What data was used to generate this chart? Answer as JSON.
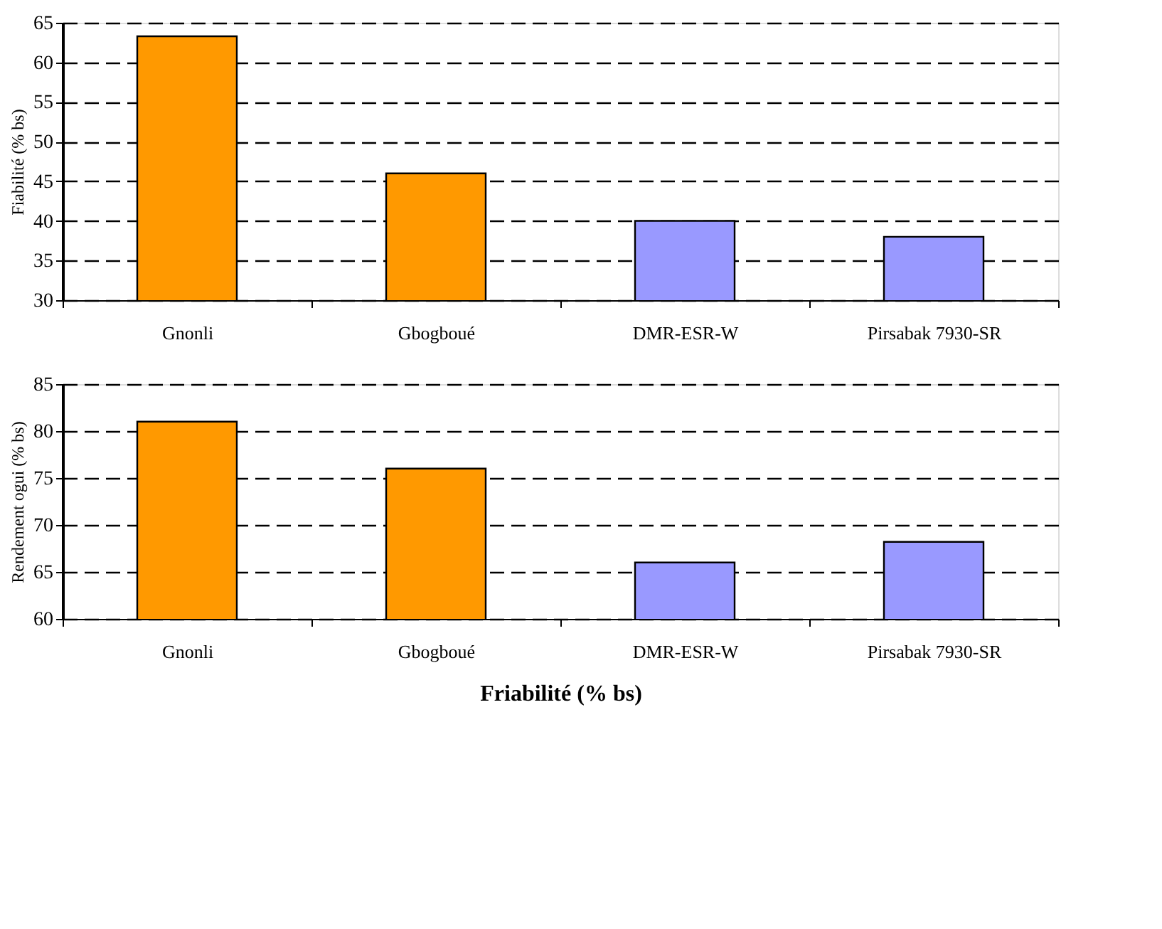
{
  "chart_data": [
    {
      "type": "bar",
      "ylabel": "Fiabilité (% bs)",
      "categories": [
        "Gnonli",
        "Gbogboué",
        "DMR-ESR-W",
        "Pirsabak 7930-SR"
      ],
      "values": [
        63.3,
        46,
        40,
        38
      ],
      "colors": [
        "#ff9900",
        "#ff9900",
        "#9999ff",
        "#9999ff"
      ],
      "ylim": [
        30,
        65
      ],
      "yticks": [
        30,
        35,
        40,
        45,
        50,
        55,
        60,
        65
      ],
      "grid": "y"
    },
    {
      "type": "bar",
      "ylabel": "Rendement ogui (% bs)",
      "xlabel": "Friabilité (% bs)",
      "categories": [
        "Gnonli",
        "Gbogboué",
        "DMR-ESR-W",
        "Pirsabak 7930-SR"
      ],
      "values": [
        81,
        76,
        66,
        68.2
      ],
      "colors": [
        "#ff9900",
        "#ff9900",
        "#9999ff",
        "#9999ff"
      ],
      "ylim": [
        60,
        85
      ],
      "yticks": [
        60,
        65,
        70,
        75,
        80,
        85
      ],
      "grid": "y"
    }
  ]
}
